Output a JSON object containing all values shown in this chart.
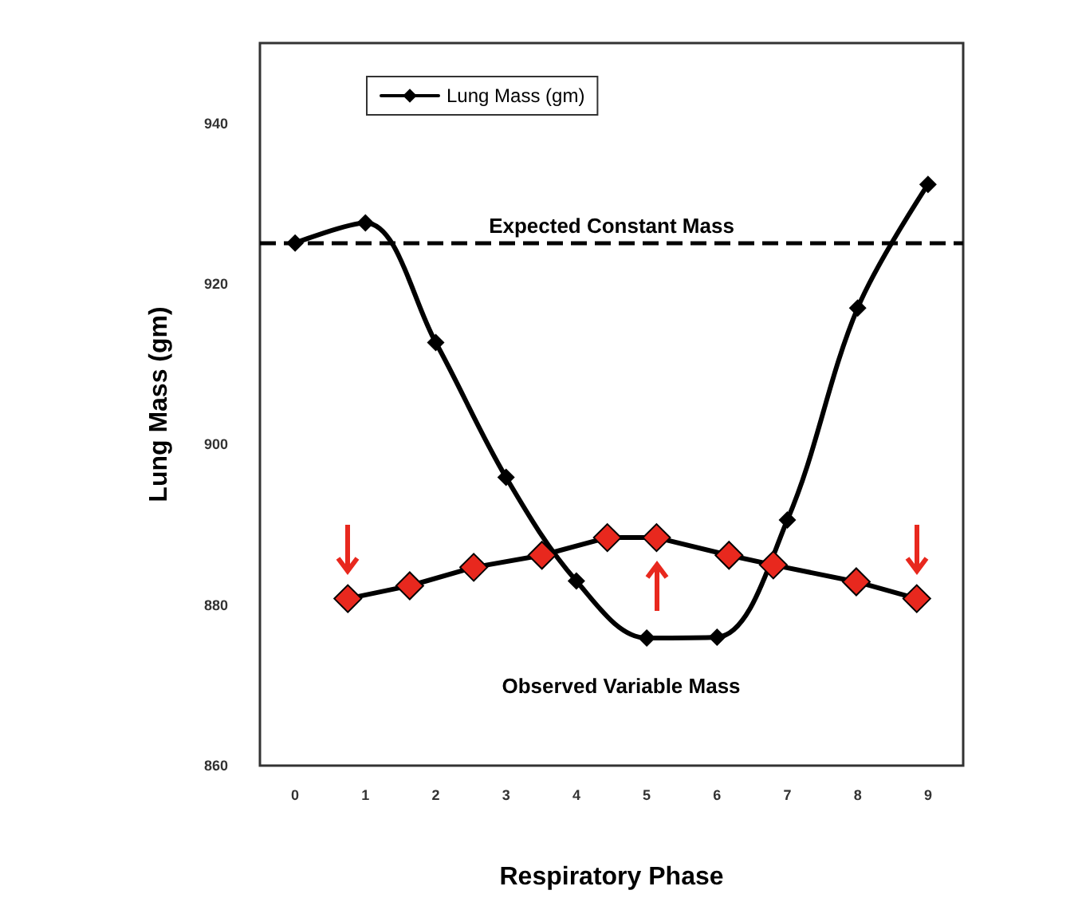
{
  "chart_data": {
    "type": "line",
    "xlabel": "Respiratory Phase",
    "ylabel": "Lung Mass (gm)",
    "xlim": [
      -0.5,
      9.5
    ],
    "xticks": [
      0,
      1,
      2,
      3,
      4,
      5,
      6,
      7,
      8,
      9
    ],
    "ylim": [
      860,
      950
    ],
    "yticks": [
      860,
      880,
      900,
      920,
      940
    ],
    "series": [
      {
        "name": "Lung Mass (gm)",
        "color": "#000000",
        "x": [
          0,
          1,
          2,
          3,
          4,
          5,
          6,
          7,
          8,
          9
        ],
        "values": [
          925.1,
          927.6,
          912.7,
          895.9,
          883,
          875.9,
          876,
          890.6,
          917,
          932.4
        ]
      },
      {
        "color": "#e8281e",
        "x": [
          0.75,
          1.63,
          2.54,
          3.51,
          4.44,
          5.14,
          6.17,
          6.8,
          7.98,
          8.84
        ],
        "values": [
          880.8,
          882.4,
          884.7,
          886.2,
          888.4,
          888.4,
          886.2,
          885,
          882.9,
          880.8
        ]
      }
    ],
    "ref_lines": [
      {
        "axis": "y",
        "value": 925.2,
        "label": "Expected Constant Mass",
        "color": "#000000",
        "line_style": "dashed"
      }
    ],
    "annotations": [
      "Observed Variable Mass"
    ],
    "legend": "top left",
    "grid": false,
    "marker": "diamond",
    "line_style": "solid"
  }
}
